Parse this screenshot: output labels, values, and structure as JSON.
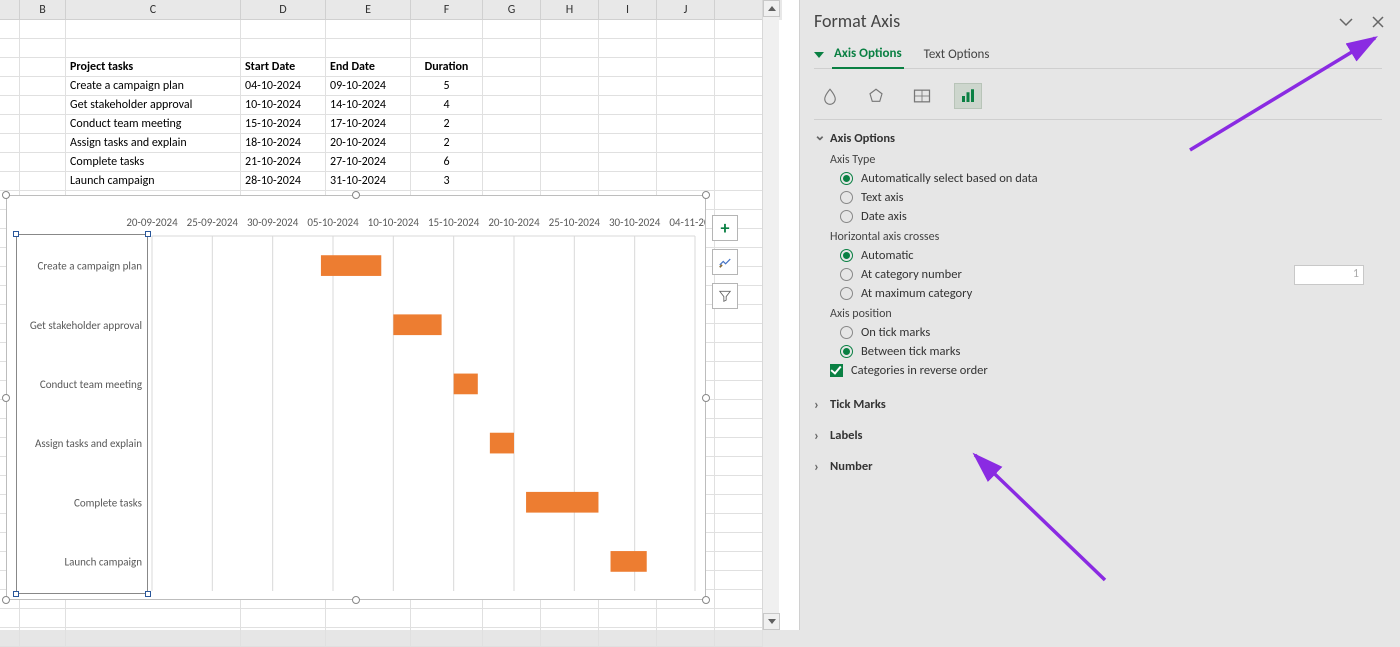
{
  "columns": [
    "B",
    "C",
    "D",
    "E",
    "F",
    "G",
    "H",
    "I",
    "J"
  ],
  "table": {
    "headers": {
      "task": "Project tasks",
      "start": "Start Date",
      "end": "End Date",
      "dur": "Duration"
    },
    "rows": [
      {
        "task": "Create a campaign plan",
        "start": "04-10-2024",
        "end": "09-10-2024",
        "dur": "5"
      },
      {
        "task": "Get stakeholder approval",
        "start": "10-10-2024",
        "end": "14-10-2024",
        "dur": "4"
      },
      {
        "task": "Conduct team meeting",
        "start": "15-10-2024",
        "end": "17-10-2024",
        "dur": "2"
      },
      {
        "task": "Assign tasks and explain",
        "start": "18-10-2024",
        "end": "20-10-2024",
        "dur": "2"
      },
      {
        "task": "Complete tasks",
        "start": "21-10-2024",
        "end": "27-10-2024",
        "dur": "6"
      },
      {
        "task": "Launch campaign",
        "start": "28-10-2024",
        "end": "31-10-2024",
        "dur": "3"
      }
    ]
  },
  "chart": {
    "type": "gantt-bar",
    "x_labels": [
      "20-09-2024",
      "25-09-2024",
      "30-09-2024",
      "05-10-2024",
      "10-10-2024",
      "15-10-2024",
      "20-10-2024",
      "25-10-2024",
      "30-10-2024",
      "04-11-2024"
    ],
    "x_min_serial": 45555,
    "x_max_serial": 45600,
    "y_labels": [
      "Create a campaign plan",
      "Get stakeholder approval",
      "Conduct team meeting",
      "Assign tasks and explain",
      "Complete tasks",
      "Launch campaign"
    ],
    "bars": [
      {
        "start": 45569,
        "len": 5
      },
      {
        "start": 45575,
        "len": 4
      },
      {
        "start": 45580,
        "len": 2
      },
      {
        "start": 45583,
        "len": 2
      },
      {
        "start": 45586,
        "len": 6
      },
      {
        "start": 45593,
        "len": 3
      }
    ],
    "bar_color": "#ed7d31",
    "bar_height_ratio": 0.35,
    "grid_color": "#d9d9d9",
    "axis_text_color": "#595959",
    "axis_font_size": 11
  },
  "pane": {
    "title": "Format Axis",
    "tabs": {
      "axis": "Axis Options",
      "text": "Text Options"
    },
    "sections": {
      "axis_options": "Axis Options",
      "tick_marks": "Tick Marks",
      "labels": "Labels",
      "number": "Number"
    },
    "axis_type": {
      "label": "Axis Type",
      "auto": "Automatically select based on data",
      "text": "Text axis",
      "date": "Date axis"
    },
    "hcross": {
      "label": "Horizontal axis crosses",
      "auto": "Automatic",
      "atcat": "At category number",
      "atmax": "At maximum category",
      "value": "1"
    },
    "axis_pos": {
      "label": "Axis position",
      "ontick": "On tick marks",
      "between": "Between tick marks",
      "reverse": "Categories in reverse order"
    }
  },
  "annotation": {
    "arrow_color": "#8a2be2"
  }
}
